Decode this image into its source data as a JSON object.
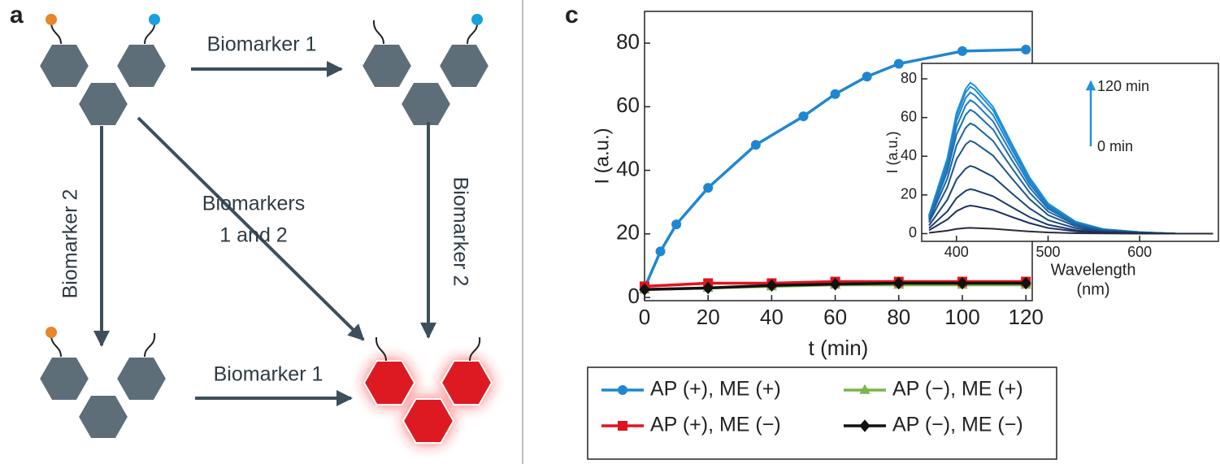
{
  "panel_a": {
    "label": "a",
    "arrows": [
      {
        "label": "Biomarker 1"
      },
      {
        "label": "Biomarker 2"
      },
      {
        "label": [
          "Biomarkers",
          "1 and 2"
        ]
      },
      {
        "label": "Biomarker 2"
      },
      {
        "label": "Biomarker 1"
      }
    ]
  },
  "chart_data": [
    {
      "type": "line",
      "panel_label": "c",
      "xlabel": "t (min)",
      "ylabel": "I (a.u.)",
      "xlim": [
        0,
        122
      ],
      "ylim": [
        -1,
        90
      ],
      "xticks": [
        0,
        20,
        40,
        60,
        80,
        100,
        120
      ],
      "yticks": [
        0,
        20,
        40,
        60,
        80
      ],
      "legend": "below",
      "series": [
        {
          "name": "AP (+), ME (+)",
          "color": "#1f87d0",
          "marker": "circle",
          "x": [
            0,
            5,
            10,
            20,
            35,
            50,
            60,
            70,
            80,
            100,
            120
          ],
          "values": [
            3,
            14.5,
            23,
            34.5,
            48,
            57,
            64,
            69.5,
            73.5,
            77.5,
            78
          ]
        },
        {
          "name": "AP (−), ME (+)",
          "color": "#7ab648",
          "marker": "triangle",
          "x": [
            0,
            20,
            40,
            60,
            80,
            100,
            120
          ],
          "values": [
            2.5,
            3,
            3.5,
            4,
            4,
            4,
            4
          ]
        },
        {
          "name": "AP (+), ME (−)",
          "color": "#e0141e",
          "marker": "square",
          "x": [
            0,
            20,
            40,
            60,
            80,
            100,
            120
          ],
          "values": [
            3.5,
            4.5,
            4.5,
            5,
            5,
            5,
            5
          ]
        },
        {
          "name": "AP (−), ME (−)",
          "color": "#111111",
          "marker": "diamond",
          "x": [
            0,
            20,
            40,
            60,
            80,
            100,
            120
          ],
          "values": [
            2.5,
            3,
            3.8,
            4.2,
            4.5,
            4.5,
            4.5
          ]
        }
      ]
    },
    {
      "type": "line",
      "xlabel": [
        "Wavelength",
        "(nm)"
      ],
      "ylabel": "I (a.u.)",
      "xlim": [
        362,
        686
      ],
      "ylim": [
        -4,
        88
      ],
      "xticks": [
        400,
        500,
        600
      ],
      "yticks": [
        0,
        20,
        40,
        60,
        80
      ],
      "annotations": [
        "120 min",
        "0 min"
      ],
      "x": [
        370,
        390,
        400,
        410,
        415,
        420,
        440,
        460,
        480,
        500,
        530,
        560,
        600,
        640,
        680
      ],
      "series": [
        {
          "color": "#1e93dc",
          "values": [
            9.4,
            39,
            62.4,
            74.9,
            78,
            76.4,
            65.5,
            46.8,
            28.9,
            15.6,
            6.2,
            2.3,
            0.8,
            0,
            0
          ]
        },
        {
          "color": "#1e8cd4",
          "values": [
            9.1,
            38,
            60.8,
            73,
            76,
            74.5,
            63.8,
            45.6,
            28.1,
            15.2,
            6.1,
            2.3,
            0.8,
            0,
            0
          ]
        },
        {
          "color": "#1e84cb",
          "values": [
            8.8,
            36.5,
            58.4,
            70.1,
            73,
            71.5,
            61.3,
            43.8,
            27,
            14.6,
            5.8,
            2.2,
            0.7,
            0,
            0
          ]
        },
        {
          "color": "#1e7bc0",
          "values": [
            8.3,
            34.5,
            55.2,
            66.2,
            69,
            67.6,
            58,
            41.4,
            25.5,
            13.8,
            5.5,
            2.1,
            0.7,
            0,
            0
          ]
        },
        {
          "color": "#1d70b2",
          "values": [
            7.7,
            32,
            51.2,
            61.4,
            64,
            62.7,
            53.8,
            38.4,
            23.7,
            12.8,
            5.1,
            1.9,
            0.6,
            0,
            0
          ]
        },
        {
          "color": "#1d64a2",
          "values": [
            6.8,
            28.5,
            45.6,
            54.7,
            57,
            55.9,
            47.9,
            34.2,
            21.1,
            11.4,
            4.6,
            1.7,
            0.6,
            0,
            0
          ]
        },
        {
          "color": "#1c5690",
          "values": [
            5.8,
            24,
            38.4,
            46.1,
            48,
            47,
            40.3,
            28.8,
            17.8,
            9.6,
            3.8,
            1.4,
            0.5,
            0,
            0
          ]
        },
        {
          "color": "#1b477c",
          "values": [
            4.2,
            17.5,
            28,
            33.6,
            35,
            34.3,
            29.4,
            21,
            13,
            7,
            2.8,
            1.1,
            0.4,
            0,
            0
          ]
        },
        {
          "color": "#1a3a6a",
          "values": [
            2.8,
            11.5,
            18.4,
            22.1,
            23,
            22.5,
            19.3,
            13.8,
            8.5,
            4.6,
            1.8,
            0.7,
            0.2,
            0,
            0
          ]
        },
        {
          "color": "#1a2e5c",
          "values": [
            1.7,
            7.3,
            11.6,
            13.9,
            14.5,
            14.2,
            12.2,
            8.7,
            5.4,
            2.9,
            1.2,
            0.4,
            0.1,
            0,
            0
          ]
        },
        {
          "color": "#2a2a40",
          "values": [
            0.4,
            1.5,
            2.4,
            2.9,
            3,
            2.9,
            2.5,
            1.8,
            1.1,
            0.6,
            0.2,
            0.1,
            0,
            0,
            0
          ]
        }
      ]
    }
  ]
}
